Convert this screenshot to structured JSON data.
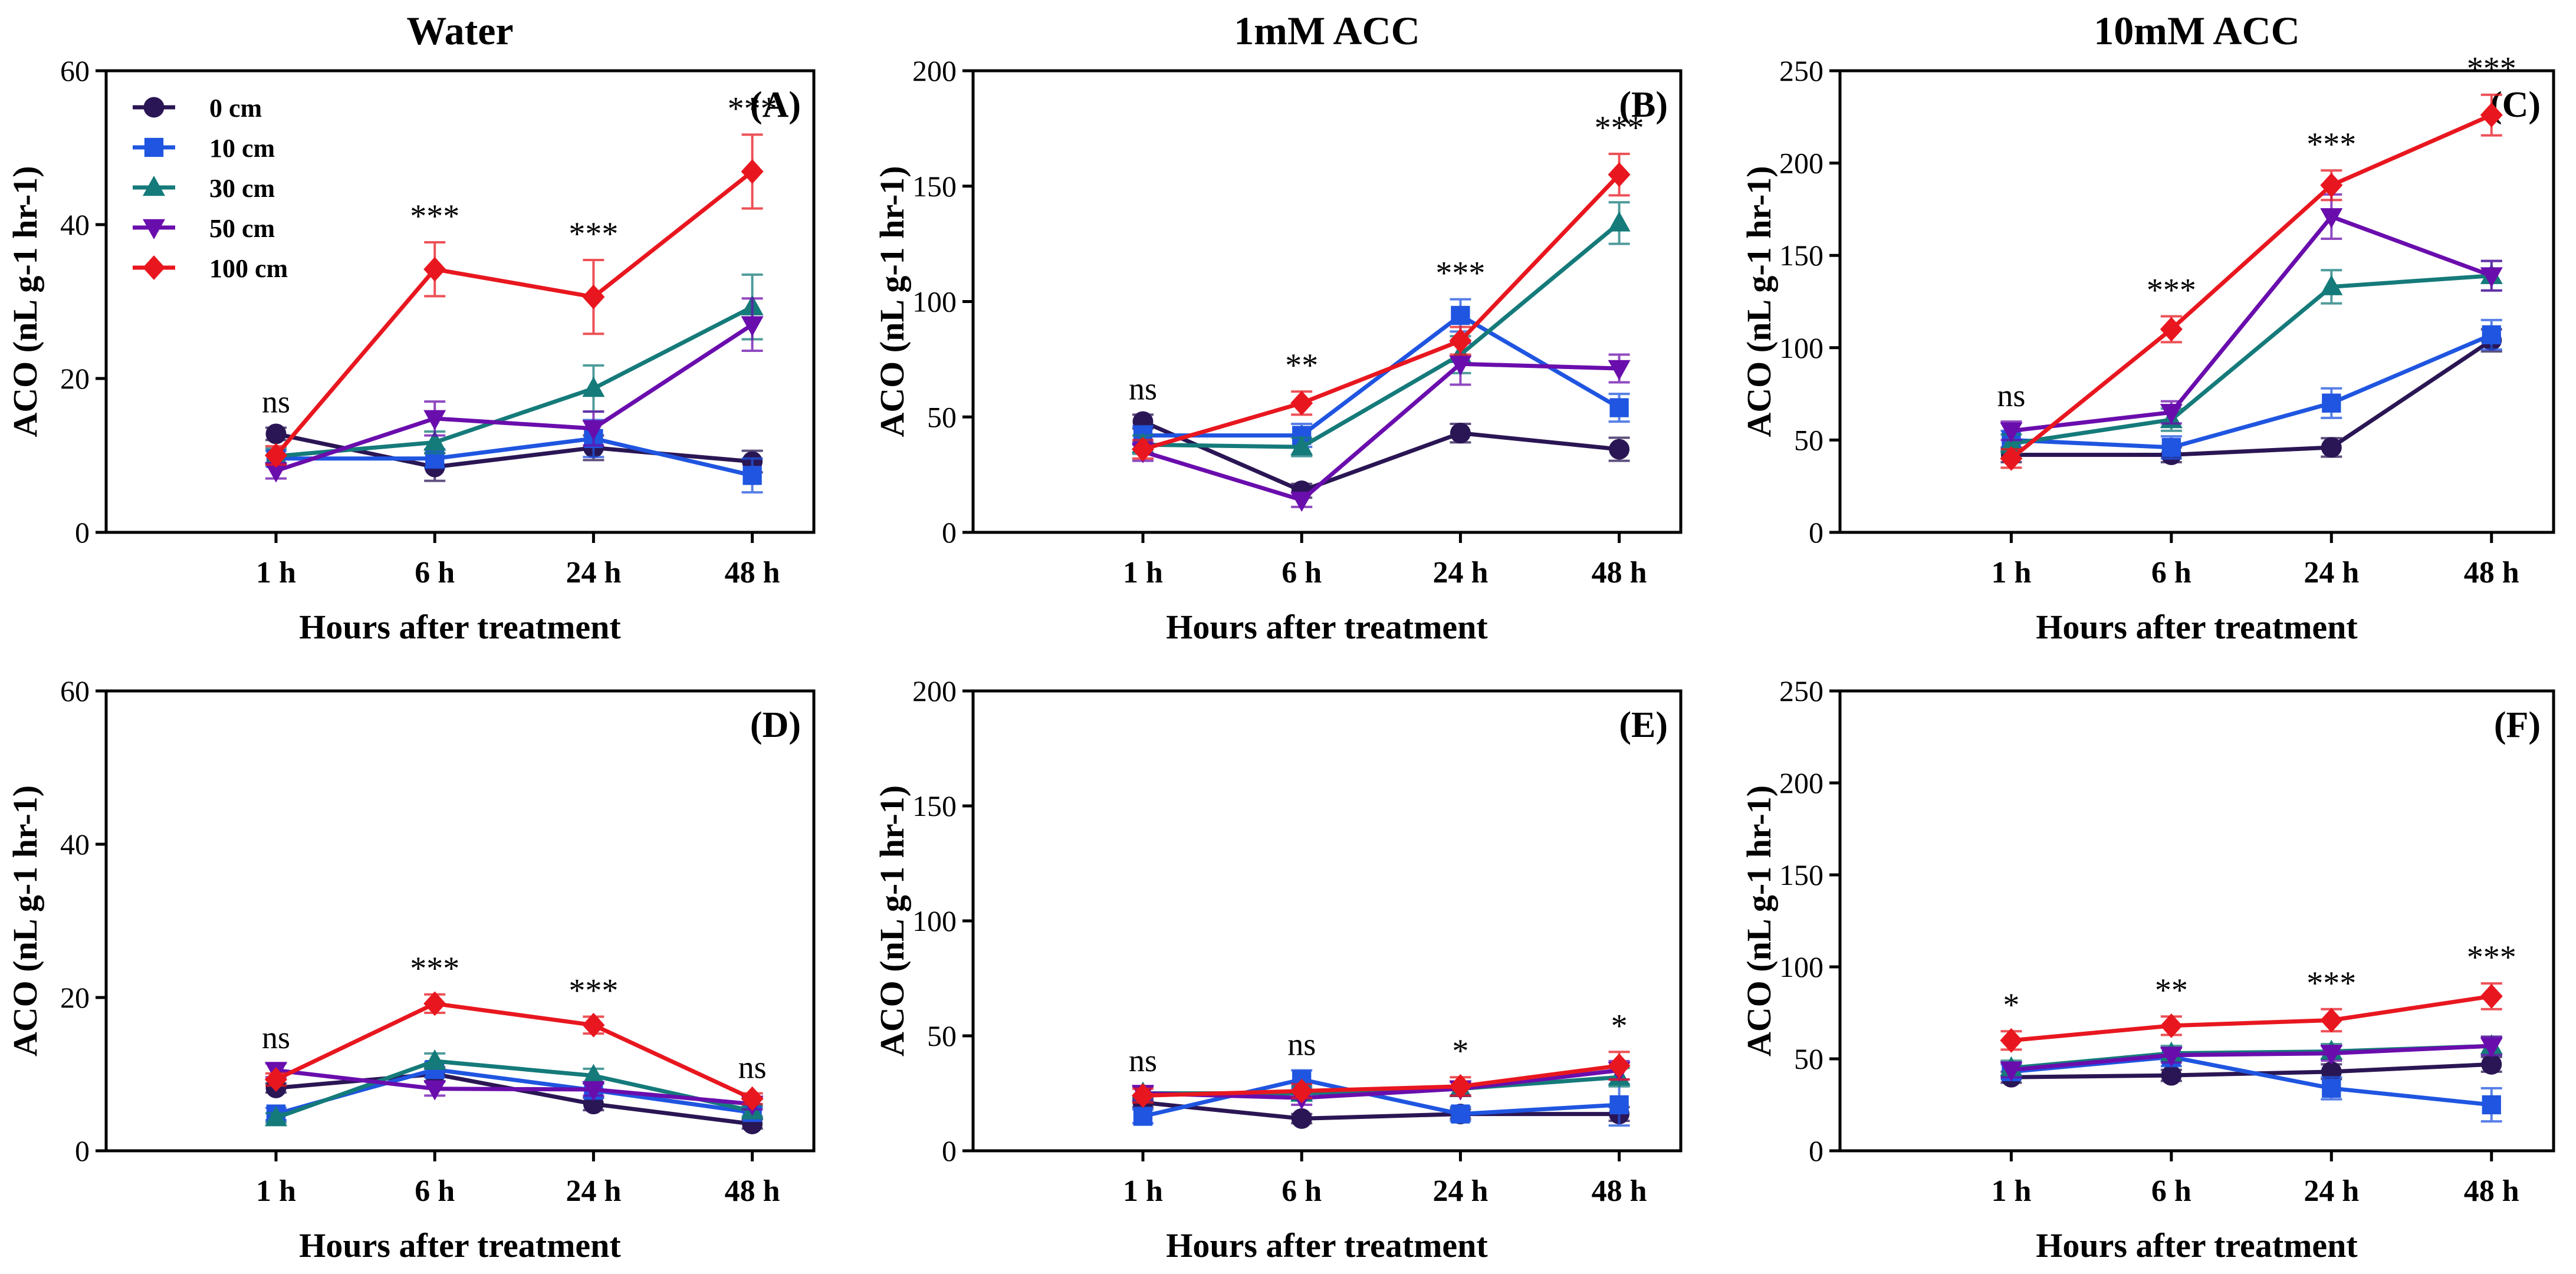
{
  "series_meta": [
    {
      "name": "0 cm",
      "color": "#2a1654",
      "marker": "circle"
    },
    {
      "name": "10 cm",
      "color": "#1f55e0",
      "marker": "square"
    },
    {
      "name": "30 cm",
      "color": "#157a7a",
      "marker": "triangle-up"
    },
    {
      "name": "50 cm",
      "color": "#6a0dad",
      "marker": "triangle-down"
    },
    {
      "name": "100 cm",
      "color": "#e8171f",
      "marker": "diamond"
    }
  ],
  "chart_data": [
    {
      "type": "line",
      "panel": "(A)",
      "title": "Water",
      "categories": [
        "1 h",
        "6 h",
        "24 h",
        "48 h"
      ],
      "xlabel": "Hours after treatment",
      "ylabel": "ACO (nL g-1 hr-1)",
      "ylim": [
        0,
        60
      ],
      "yticks": [
        0,
        20,
        40,
        60
      ],
      "legend": "top-left",
      "significance": [
        "ns",
        "***",
        "***",
        "***"
      ],
      "series": [
        {
          "name": "0 cm",
          "values": [
            12.8,
            8.5,
            11.0,
            9.2
          ],
          "errors": [
            0.8,
            1.8,
            1.6,
            1.4
          ]
        },
        {
          "name": "10 cm",
          "values": [
            9.6,
            9.6,
            12.2,
            7.4
          ],
          "errors": [
            1.0,
            1.2,
            2.4,
            2.2
          ]
        },
        {
          "name": "30 cm",
          "values": [
            9.9,
            11.7,
            18.7,
            29.3
          ],
          "errors": [
            1.0,
            1.4,
            3.0,
            4.2
          ]
        },
        {
          "name": "50 cm",
          "values": [
            8.0,
            14.8,
            13.5,
            27.0
          ],
          "errors": [
            1.0,
            2.2,
            2.2,
            3.4
          ]
        },
        {
          "name": "100 cm",
          "values": [
            10.0,
            34.2,
            30.6,
            46.9
          ],
          "errors": [
            1.2,
            3.5,
            4.8,
            4.8
          ]
        }
      ]
    },
    {
      "type": "line",
      "panel": "(B)",
      "title": "1mM ACC",
      "categories": [
        "1 h",
        "6 h",
        "24 h",
        "48 h"
      ],
      "xlabel": "Hours after treatment",
      "ylabel": "ACO (nL g-1 hr-1)",
      "ylim": [
        0,
        200
      ],
      "yticks": [
        0,
        50,
        100,
        150,
        200
      ],
      "significance": [
        "ns",
        "**",
        "***",
        "***"
      ],
      "series": [
        {
          "name": "0 cm",
          "values": [
            48,
            18,
            43,
            36
          ],
          "errors": [
            3,
            3,
            4,
            5
          ]
        },
        {
          "name": "10 cm",
          "values": [
            42,
            42,
            94,
            54
          ],
          "errors": [
            4,
            5,
            7,
            6
          ]
        },
        {
          "name": "30 cm",
          "values": [
            38,
            37,
            77,
            134
          ],
          "errors": [
            4,
            4,
            8,
            9
          ]
        },
        {
          "name": "50 cm",
          "values": [
            35,
            14,
            73,
            71
          ],
          "errors": [
            4,
            3,
            9,
            6
          ]
        },
        {
          "name": "100 cm",
          "values": [
            36,
            56,
            83,
            155
          ],
          "errors": [
            4,
            5,
            6,
            9
          ]
        }
      ]
    },
    {
      "type": "line",
      "panel": "(C)",
      "title": "10mM ACC",
      "categories": [
        "1 h",
        "6 h",
        "24 h",
        "48 h"
      ],
      "xlabel": "Hours after treatment",
      "ylabel": "ACO (nL g-1 hr-1)",
      "ylim": [
        0,
        250
      ],
      "yticks": [
        0,
        50,
        100,
        150,
        200,
        250
      ],
      "significance": [
        "ns",
        "***",
        "***",
        "***"
      ],
      "series": [
        {
          "name": "0 cm",
          "values": [
            42,
            42,
            46,
            104
          ],
          "errors": [
            4,
            4,
            5,
            6
          ]
        },
        {
          "name": "10 cm",
          "values": [
            50,
            46,
            70,
            107
          ],
          "errors": [
            5,
            6,
            8,
            8
          ]
        },
        {
          "name": "30 cm",
          "values": [
            48,
            61,
            133,
            139
          ],
          "errors": [
            5,
            6,
            9,
            8
          ]
        },
        {
          "name": "50 cm",
          "values": [
            55,
            65,
            171,
            139
          ],
          "errors": [
            5,
            6,
            12,
            8
          ]
        },
        {
          "name": "100 cm",
          "values": [
            40,
            110,
            188,
            226
          ],
          "errors": [
            5,
            7,
            8,
            11
          ]
        }
      ]
    },
    {
      "type": "line",
      "panel": "(D)",
      "title": "",
      "categories": [
        "1 h",
        "6 h",
        "24 h",
        "48 h"
      ],
      "xlabel": "Hours after treatment",
      "ylabel": "ACO (nL g-1 hr-1)",
      "ylim": [
        0,
        60
      ],
      "yticks": [
        0,
        20,
        40,
        60
      ],
      "significance": [
        "ns",
        "***",
        "***",
        "ns"
      ],
      "series": [
        {
          "name": "0 cm",
          "values": [
            8.2,
            10.0,
            6.1,
            3.5
          ],
          "errors": [
            0.6,
            0.9,
            0.8,
            0.6
          ]
        },
        {
          "name": "10 cm",
          "values": [
            4.8,
            10.6,
            7.9,
            5.0
          ],
          "errors": [
            0.8,
            1.0,
            0.9,
            0.7
          ]
        },
        {
          "name": "30 cm",
          "values": [
            4.3,
            11.7,
            9.8,
            5.2
          ],
          "errors": [
            0.6,
            1.0,
            0.9,
            0.7
          ]
        },
        {
          "name": "50 cm",
          "values": [
            10.5,
            8.1,
            8.0,
            6.1
          ],
          "errors": [
            0.9,
            0.9,
            0.8,
            0.7
          ]
        },
        {
          "name": "100 cm",
          "values": [
            9.3,
            19.2,
            16.4,
            6.8
          ],
          "errors": [
            0.8,
            1.2,
            1.1,
            0.7
          ]
        }
      ]
    },
    {
      "type": "line",
      "panel": "(E)",
      "title": "",
      "categories": [
        "1 h",
        "6 h",
        "24 h",
        "48 h"
      ],
      "xlabel": "Hours after treatment",
      "ylabel": "ACO (nL g-1 hr-1)",
      "ylim": [
        0,
        200
      ],
      "yticks": [
        0,
        50,
        100,
        150,
        200
      ],
      "significance": [
        "ns",
        "ns",
        "*",
        "*"
      ],
      "series": [
        {
          "name": "0 cm",
          "values": [
            21,
            14,
            16,
            16
          ],
          "errors": [
            2,
            2,
            2,
            3
          ]
        },
        {
          "name": "10 cm",
          "values": [
            15,
            31,
            16,
            20
          ],
          "errors": [
            3,
            4,
            3,
            9
          ]
        },
        {
          "name": "30 cm",
          "values": [
            25,
            25,
            27,
            32
          ],
          "errors": [
            3,
            3,
            3,
            4
          ]
        },
        {
          "name": "50 cm",
          "values": [
            25,
            23,
            27,
            35
          ],
          "errors": [
            3,
            3,
            3,
            4
          ]
        },
        {
          "name": "100 cm",
          "values": [
            24,
            26,
            28,
            37
          ],
          "errors": [
            3,
            3,
            4,
            6
          ]
        }
      ]
    },
    {
      "type": "line",
      "panel": "(F)",
      "title": "",
      "categories": [
        "1 h",
        "6 h",
        "24 h",
        "48 h"
      ],
      "xlabel": "Hours after treatment",
      "ylabel": "ACO (nL g-1 hr-1)",
      "ylim": [
        0,
        250
      ],
      "yticks": [
        0,
        50,
        100,
        150,
        200,
        250
      ],
      "significance": [
        "*",
        "**",
        "***",
        "***"
      ],
      "series": [
        {
          "name": "0 cm",
          "values": [
            40,
            41,
            43,
            47
          ],
          "errors": [
            3,
            3,
            4,
            4
          ]
        },
        {
          "name": "10 cm",
          "values": [
            43,
            51,
            34,
            25
          ],
          "errors": [
            4,
            5,
            6,
            9
          ]
        },
        {
          "name": "30 cm",
          "values": [
            45,
            53,
            54,
            57
          ],
          "errors": [
            4,
            4,
            4,
            5
          ]
        },
        {
          "name": "50 cm",
          "values": [
            44,
            52,
            53,
            57
          ],
          "errors": [
            4,
            4,
            4,
            5
          ]
        },
        {
          "name": "100 cm",
          "values": [
            60,
            68,
            71,
            84
          ],
          "errors": [
            5,
            5,
            6,
            7
          ]
        }
      ]
    }
  ]
}
